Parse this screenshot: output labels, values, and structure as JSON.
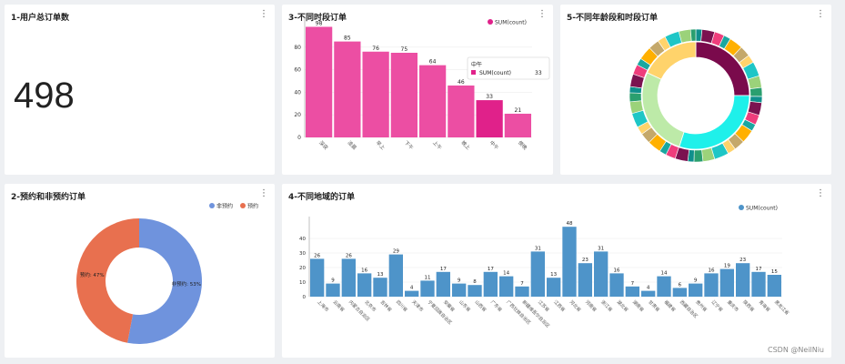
{
  "panels": {
    "p1": {
      "title": "1-用户总订单数",
      "value": "498"
    },
    "p3": {
      "title": "3-不同时段订单",
      "legend": "SUM(count)",
      "tooltip": {
        "title": "中午",
        "label": "SUM(count)",
        "value": "33"
      }
    },
    "p5": {
      "title": "5-不同年龄段和时段订单"
    },
    "p2": {
      "title": "2-预约和非预约订单"
    },
    "p4": {
      "title": "4-不同地域的订单",
      "legend": "SUM(count)"
    }
  },
  "watermark": "CSDN @NeilNiu",
  "colors": {
    "pink": "#ea4aa0",
    "pink_active": "#e0218a",
    "blue": "#4e94c9",
    "non_reserve": "#6f93dd",
    "reserve": "#e8704f"
  },
  "chart_data": [
    {
      "type": "bar",
      "id": "p3",
      "categories": [
        "深夜",
        "凌晨",
        "早上",
        "下午",
        "上午",
        "晚上",
        "中午",
        "傍晚"
      ],
      "values": [
        98,
        85,
        76,
        75,
        64,
        46,
        33,
        21
      ],
      "yticks": [
        0,
        20,
        40,
        60,
        80
      ],
      "ylim": [
        0,
        100
      ],
      "legend": "top-right"
    },
    {
      "type": "bar",
      "id": "p4",
      "categories": [
        "上海市",
        "云南省",
        "内蒙古自治区",
        "北京市",
        "吉林省",
        "四川省",
        "天津市",
        "宁夏回族自治区",
        "安徽省",
        "山东省",
        "山西省",
        "广东省",
        "广西壮族自治区",
        "新疆维吾尔自治区",
        "江苏省",
        "江西省",
        "河北省",
        "河南省",
        "浙江省",
        "湖北省",
        "湖南省",
        "甘肃省",
        "福建省",
        "西藏自治区",
        "贵州省",
        "辽宁省",
        "重庆市",
        "陕西省",
        "青海省",
        "黑龙江省"
      ],
      "values": [
        26,
        9,
        26,
        16,
        13,
        29,
        4,
        11,
        17,
        9,
        8,
        17,
        14,
        7,
        31,
        13,
        48,
        23,
        31,
        16,
        7,
        4,
        14,
        6,
        9,
        16,
        19,
        23,
        17,
        15
      ],
      "yticks": [
        0,
        10,
        20,
        30,
        40
      ],
      "ylim": [
        0,
        50
      ],
      "legend": "top-right"
    },
    {
      "type": "pie",
      "id": "p2",
      "donut": true,
      "slices": [
        {
          "name": "非预约",
          "value": 53,
          "label": "非预约: 53%"
        },
        {
          "name": "预约",
          "value": 47,
          "label": "预约: 47%"
        }
      ],
      "legend": "top-right"
    },
    {
      "type": "pie",
      "id": "p5",
      "donut": true,
      "sunburst": true,
      "inner_colors": [
        "#7a0a4c",
        "#1ff0ea",
        "#bdeaa8",
        "#ffd36b"
      ],
      "inner_values": [
        25,
        30,
        27,
        18
      ]
    }
  ]
}
